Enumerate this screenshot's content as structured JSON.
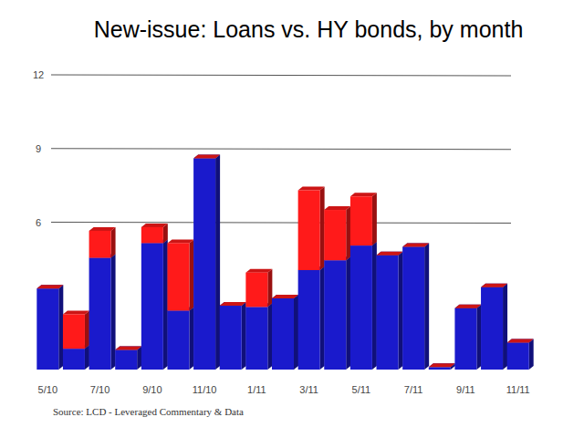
{
  "chart_data": {
    "type": "bar",
    "title": "New-issue: Loans vs. HY bonds, by month",
    "source": "Source: LCD - Leveraged Commentary & Data",
    "categories": [
      "5/10",
      null,
      "7/10",
      null,
      "9/10",
      null,
      "11/10",
      null,
      "1/11",
      null,
      "3/11",
      null,
      "5/11",
      null,
      "7/11",
      null,
      "9/11",
      null,
      "11/11"
    ],
    "series": [
      {
        "color": "#1a1acc",
        "values": [
          3.3,
          0.85,
          4.55,
          0.8,
          5.15,
          2.4,
          8.6,
          2.6,
          2.55,
          2.9,
          4.05,
          4.45,
          5.05,
          4.65,
          5.0,
          0.1,
          2.5,
          3.35,
          1.1
        ]
      },
      {
        "color": "#ff1a1a",
        "values": [
          0,
          1.4,
          1.1,
          0,
          0.65,
          2.75,
          0,
          0,
          1.4,
          0,
          3.25,
          2.05,
          2.0,
          0,
          0,
          0,
          0,
          0,
          0
        ]
      }
    ],
    "stacked": true,
    "ylim": [
      0,
      12
    ],
    "yticks": [
      6,
      9,
      12
    ],
    "grid": true
  }
}
